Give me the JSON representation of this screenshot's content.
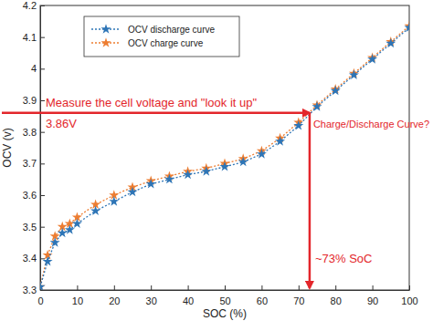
{
  "chart_data": {
    "type": "line",
    "x": [
      0,
      2,
      4,
      6,
      8,
      10,
      15,
      20,
      25,
      30,
      35,
      40,
      45,
      50,
      55,
      60,
      65,
      70,
      75,
      80,
      85,
      90,
      95,
      100
    ],
    "series": [
      {
        "name": "OCV discharge curve",
        "color": "#2e75b6",
        "marker": "star",
        "line_style": "dotted",
        "values": [
          3.31,
          3.39,
          3.45,
          3.48,
          3.49,
          3.51,
          3.55,
          3.58,
          3.61,
          3.635,
          3.65,
          3.665,
          3.675,
          3.69,
          3.705,
          3.73,
          3.77,
          3.82,
          3.88,
          3.93,
          3.98,
          4.03,
          4.08,
          4.13
        ]
      },
      {
        "name": "OCV charge curve",
        "color": "#ed7d31",
        "marker": "star",
        "line_style": "dotted",
        "values": [
          3.31,
          3.41,
          3.47,
          3.5,
          3.51,
          3.53,
          3.57,
          3.6,
          3.625,
          3.645,
          3.66,
          3.675,
          3.685,
          3.7,
          3.715,
          3.74,
          3.78,
          3.83,
          3.885,
          3.935,
          3.985,
          4.035,
          4.085,
          4.135
        ]
      }
    ],
    "xlabel": "SOC (%)",
    "ylabel": "OCV (v)",
    "xlim": [
      0,
      100
    ],
    "xticks": [
      0,
      10,
      20,
      30,
      40,
      50,
      60,
      70,
      80,
      90,
      100
    ],
    "ylim": [
      3.3,
      4.2
    ],
    "yticks": [
      3.3,
      3.4,
      3.5,
      3.6,
      3.7,
      3.8,
      3.9,
      4,
      4.1,
      4.2
    ],
    "legend": "upper left",
    "grid": false,
    "annotations": [
      {
        "text": "Measure the cell voltage and \"look it up\""
      },
      {
        "text": "3.86V",
        "y": 3.86
      },
      {
        "text": "Charge/Discharge Curve?"
      },
      {
        "text": "~73% SoC",
        "x": 73
      }
    ]
  }
}
